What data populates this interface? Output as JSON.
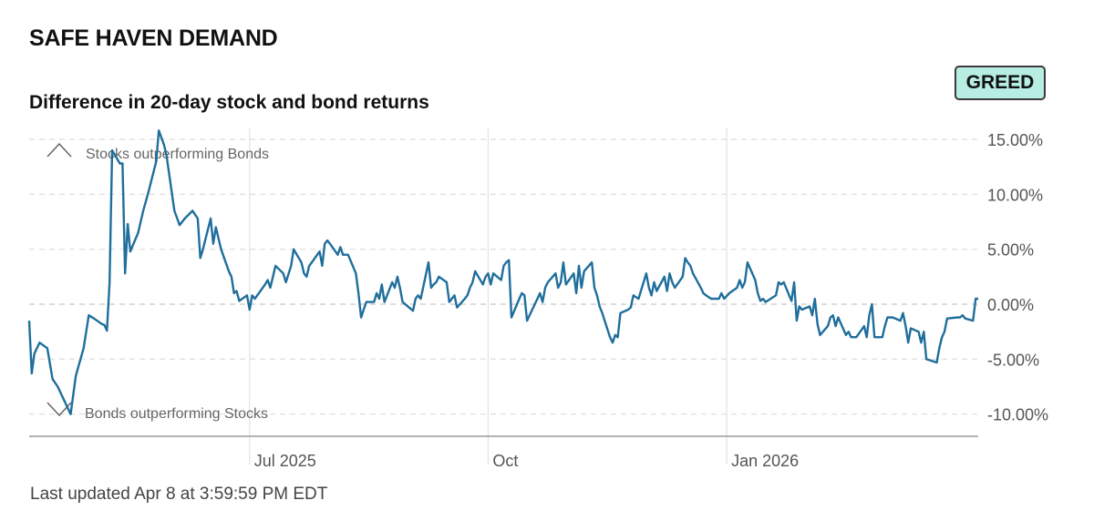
{
  "header": {
    "title": "SAFE HAVEN DEMAND",
    "badge_label": "GREED",
    "badge_color": "#b8ede4"
  },
  "footer": {
    "updated": "Last updated Apr 8 at 3:59:59 PM EDT"
  },
  "chart_data": {
    "type": "line",
    "title": "Difference in 20-day stock and bond returns",
    "xlabel": "",
    "ylabel": "",
    "ylim": [
      -12,
      16
    ],
    "y_ticks": [
      {
        "value": 15,
        "label": "15.00%"
      },
      {
        "value": 10,
        "label": "10.00%"
      },
      {
        "value": 5,
        "label": "5.00%"
      },
      {
        "value": 0,
        "label": "0.00%"
      },
      {
        "value": -5,
        "label": "-5.00%"
      },
      {
        "value": -10,
        "label": "-10.00%"
      }
    ],
    "x_ticks": [
      {
        "date": "2025-07-01",
        "label": "Jul 2025"
      },
      {
        "date": "2025-10-01",
        "label": "Oct"
      },
      {
        "date": "2026-01-01",
        "label": "Jan 2026"
      }
    ],
    "xlim": [
      "2025-04-07",
      "2026-04-08"
    ],
    "grid": true,
    "line_color": "#1f6e9c",
    "annotations": {
      "top": "Stocks outperforming Bonds",
      "bottom": "Bonds outperforming Stocks"
    },
    "series": [
      {
        "values": [
          [
            "2025-04-07",
            -1.5
          ],
          [
            "2025-04-08",
            -6.3
          ],
          [
            "2025-04-09",
            -4.5
          ],
          [
            "2025-04-11",
            -3.5
          ],
          [
            "2025-04-14",
            -4.0
          ],
          [
            "2025-04-16",
            -6.8
          ],
          [
            "2025-04-18",
            -7.5
          ],
          [
            "2025-04-21",
            -9.0
          ],
          [
            "2025-04-23",
            -10.0
          ],
          [
            "2025-04-25",
            -6.5
          ],
          [
            "2025-04-28",
            -4.0
          ],
          [
            "2025-04-30",
            -1.0
          ],
          [
            "2025-05-02",
            -1.3
          ],
          [
            "2025-05-05",
            -1.8
          ],
          [
            "2025-05-06",
            -1.9
          ],
          [
            "2025-05-07",
            -2.4
          ],
          [
            "2025-05-08",
            2.0
          ],
          [
            "2025-05-09",
            14.0
          ],
          [
            "2025-05-12",
            12.8
          ],
          [
            "2025-05-13",
            12.8
          ],
          [
            "2025-05-14",
            2.8
          ],
          [
            "2025-05-15",
            7.3
          ],
          [
            "2025-05-16",
            4.8
          ],
          [
            "2025-05-19",
            6.5
          ],
          [
            "2025-05-21",
            8.5
          ],
          [
            "2025-05-23",
            10.2
          ],
          [
            "2025-05-26",
            13.0
          ],
          [
            "2025-05-27",
            15.8
          ],
          [
            "2025-05-29",
            14.5
          ],
          [
            "2025-05-30",
            13.5
          ],
          [
            "2025-06-02",
            8.5
          ],
          [
            "2025-06-04",
            7.2
          ],
          [
            "2025-06-06",
            7.8
          ],
          [
            "2025-06-09",
            8.5
          ],
          [
            "2025-06-11",
            7.8
          ],
          [
            "2025-06-12",
            4.2
          ],
          [
            "2025-06-13",
            5.0
          ],
          [
            "2025-06-16",
            7.8
          ],
          [
            "2025-06-17",
            5.5
          ],
          [
            "2025-06-18",
            7.0
          ],
          [
            "2025-06-20",
            5.0
          ],
          [
            "2025-06-23",
            3.0
          ],
          [
            "2025-06-24",
            2.5
          ],
          [
            "2025-06-25",
            1.0
          ],
          [
            "2025-06-26",
            1.2
          ],
          [
            "2025-06-27",
            0.3
          ],
          [
            "2025-06-30",
            0.8
          ],
          [
            "2025-07-01",
            -0.5
          ],
          [
            "2025-07-02",
            0.8
          ],
          [
            "2025-07-03",
            0.5
          ],
          [
            "2025-07-07",
            1.8
          ],
          [
            "2025-07-08",
            2.2
          ],
          [
            "2025-07-09",
            1.5
          ],
          [
            "2025-07-10",
            2.5
          ],
          [
            "2025-07-11",
            3.5
          ],
          [
            "2025-07-14",
            2.8
          ],
          [
            "2025-07-15",
            2.0
          ],
          [
            "2025-07-17",
            3.5
          ],
          [
            "2025-07-18",
            5.0
          ],
          [
            "2025-07-21",
            3.8
          ],
          [
            "2025-07-22",
            2.8
          ],
          [
            "2025-07-23",
            2.5
          ],
          [
            "2025-07-24",
            3.5
          ],
          [
            "2025-07-25",
            3.8
          ],
          [
            "2025-07-28",
            4.8
          ],
          [
            "2025-07-29",
            3.5
          ],
          [
            "2025-07-30",
            5.5
          ],
          [
            "2025-07-31",
            5.8
          ],
          [
            "2025-08-01",
            5.5
          ],
          [
            "2025-08-04",
            4.5
          ],
          [
            "2025-08-05",
            5.2
          ],
          [
            "2025-08-06",
            4.5
          ],
          [
            "2025-08-08",
            4.5
          ],
          [
            "2025-08-11",
            2.8
          ],
          [
            "2025-08-12",
            1.0
          ],
          [
            "2025-08-13",
            -1.2
          ],
          [
            "2025-08-14",
            -0.5
          ],
          [
            "2025-08-15",
            0.2
          ],
          [
            "2025-08-18",
            0.2
          ],
          [
            "2025-08-19",
            1.0
          ],
          [
            "2025-08-20",
            0.5
          ],
          [
            "2025-08-21",
            1.8
          ],
          [
            "2025-08-22",
            0.2
          ],
          [
            "2025-08-25",
            2.0
          ],
          [
            "2025-08-26",
            1.5
          ],
          [
            "2025-08-27",
            2.5
          ],
          [
            "2025-08-28",
            1.5
          ],
          [
            "2025-08-29",
            0.2
          ],
          [
            "2025-09-02",
            -0.6
          ],
          [
            "2025-09-03",
            0.5
          ],
          [
            "2025-09-04",
            0.8
          ],
          [
            "2025-09-05",
            0.5
          ],
          [
            "2025-09-08",
            3.8
          ],
          [
            "2025-09-09",
            1.5
          ],
          [
            "2025-09-10",
            1.8
          ],
          [
            "2025-09-11",
            2.0
          ],
          [
            "2025-09-12",
            2.5
          ],
          [
            "2025-09-15",
            2.0
          ],
          [
            "2025-09-16",
            0.2
          ],
          [
            "2025-09-17",
            0.5
          ],
          [
            "2025-09-18",
            0.8
          ],
          [
            "2025-09-19",
            -0.3
          ],
          [
            "2025-09-22",
            0.5
          ],
          [
            "2025-09-23",
            0.8
          ],
          [
            "2025-09-24",
            1.5
          ],
          [
            "2025-09-25",
            2.0
          ],
          [
            "2025-09-26",
            3.0
          ],
          [
            "2025-09-29",
            1.8
          ],
          [
            "2025-09-30",
            2.5
          ],
          [
            "2025-10-01",
            2.8
          ],
          [
            "2025-10-02",
            1.8
          ],
          [
            "2025-10-03",
            2.8
          ],
          [
            "2025-10-06",
            2.2
          ],
          [
            "2025-10-07",
            3.5
          ],
          [
            "2025-10-08",
            3.8
          ],
          [
            "2025-10-09",
            4.0
          ],
          [
            "2025-10-10",
            -1.2
          ],
          [
            "2025-10-13",
            0.5
          ],
          [
            "2025-10-14",
            1.0
          ],
          [
            "2025-10-15",
            0.8
          ],
          [
            "2025-10-16",
            -1.5
          ],
          [
            "2025-10-17",
            -1.0
          ],
          [
            "2025-10-20",
            0.5
          ],
          [
            "2025-10-21",
            1.0
          ],
          [
            "2025-10-22",
            0.2
          ],
          [
            "2025-10-23",
            1.5
          ],
          [
            "2025-10-24",
            2.0
          ],
          [
            "2025-10-27",
            2.8
          ],
          [
            "2025-10-28",
            1.5
          ],
          [
            "2025-10-29",
            2.0
          ],
          [
            "2025-10-30",
            3.8
          ],
          [
            "2025-10-31",
            1.8
          ],
          [
            "2025-11-03",
            2.8
          ],
          [
            "2025-11-04",
            1.0
          ],
          [
            "2025-11-05",
            3.5
          ],
          [
            "2025-11-06",
            1.5
          ],
          [
            "2025-11-07",
            3.0
          ],
          [
            "2025-11-10",
            3.8
          ],
          [
            "2025-11-11",
            1.5
          ],
          [
            "2025-11-12",
            0.8
          ],
          [
            "2025-11-13",
            -0.2
          ],
          [
            "2025-11-14",
            -0.8
          ],
          [
            "2025-11-17",
            -3.0
          ],
          [
            "2025-11-18",
            -3.5
          ],
          [
            "2025-11-19",
            -2.8
          ],
          [
            "2025-11-20",
            -3.0
          ],
          [
            "2025-11-21",
            -0.8
          ],
          [
            "2025-11-24",
            -0.5
          ],
          [
            "2025-11-25",
            -0.3
          ],
          [
            "2025-11-26",
            0.8
          ],
          [
            "2025-11-28",
            0.5
          ],
          [
            "2025-12-01",
            2.8
          ],
          [
            "2025-12-02",
            1.5
          ],
          [
            "2025-12-03",
            0.8
          ],
          [
            "2025-12-04",
            2.0
          ],
          [
            "2025-12-05",
            1.2
          ],
          [
            "2025-12-08",
            2.5
          ],
          [
            "2025-12-09",
            1.2
          ],
          [
            "2025-12-10",
            2.8
          ],
          [
            "2025-12-11",
            2.0
          ],
          [
            "2025-12-12",
            1.5
          ],
          [
            "2025-12-15",
            2.5
          ],
          [
            "2025-12-16",
            4.2
          ],
          [
            "2025-12-17",
            3.8
          ],
          [
            "2025-12-18",
            3.5
          ],
          [
            "2025-12-19",
            2.8
          ],
          [
            "2025-12-22",
            1.5
          ],
          [
            "2025-12-23",
            1.0
          ],
          [
            "2025-12-24",
            0.8
          ],
          [
            "2025-12-26",
            0.5
          ],
          [
            "2025-12-29",
            0.5
          ],
          [
            "2025-12-30",
            1.0
          ],
          [
            "2025-12-31",
            0.5
          ],
          [
            "2026-01-02",
            1.0
          ],
          [
            "2026-01-05",
            1.5
          ],
          [
            "2026-01-06",
            2.2
          ],
          [
            "2026-01-07",
            1.5
          ],
          [
            "2026-01-08",
            2.0
          ],
          [
            "2026-01-09",
            3.8
          ],
          [
            "2026-01-12",
            2.2
          ],
          [
            "2026-01-13",
            1.0
          ],
          [
            "2026-01-14",
            0.3
          ],
          [
            "2026-01-15",
            0.5
          ],
          [
            "2026-01-16",
            0.2
          ],
          [
            "2026-01-20",
            0.8
          ],
          [
            "2026-01-21",
            2.0
          ],
          [
            "2026-01-22",
            1.8
          ],
          [
            "2026-01-23",
            2.0
          ],
          [
            "2026-01-26",
            0.3
          ],
          [
            "2026-01-27",
            2.0
          ],
          [
            "2026-01-28",
            -1.5
          ],
          [
            "2026-01-29",
            -0.2
          ],
          [
            "2026-01-30",
            -0.5
          ],
          [
            "2026-02-02",
            -0.2
          ],
          [
            "2026-02-03",
            -1.0
          ],
          [
            "2026-02-04",
            0.5
          ],
          [
            "2026-02-05",
            -1.8
          ],
          [
            "2026-02-06",
            -2.8
          ],
          [
            "2026-02-09",
            -2.0
          ],
          [
            "2026-02-10",
            -1.2
          ],
          [
            "2026-02-11",
            -1.0
          ],
          [
            "2026-02-12",
            -2.0
          ],
          [
            "2026-02-13",
            -1.2
          ],
          [
            "2026-02-16",
            -2.8
          ],
          [
            "2026-02-17",
            -2.5
          ],
          [
            "2026-02-18",
            -3.0
          ],
          [
            "2026-02-20",
            -3.0
          ],
          [
            "2026-02-23",
            -2.0
          ],
          [
            "2026-02-24",
            -3.0
          ],
          [
            "2026-02-25",
            -1.0
          ],
          [
            "2026-02-26",
            0.0
          ],
          [
            "2026-02-27",
            -3.0
          ],
          [
            "2026-03-02",
            -3.0
          ],
          [
            "2026-03-03",
            -2.0
          ],
          [
            "2026-03-04",
            -1.2
          ],
          [
            "2026-03-06",
            -1.2
          ],
          [
            "2026-03-09",
            -1.5
          ],
          [
            "2026-03-10",
            -0.8
          ],
          [
            "2026-03-11",
            -2.0
          ],
          [
            "2026-03-12",
            -3.5
          ],
          [
            "2026-03-13",
            -2.2
          ],
          [
            "2026-03-16",
            -2.5
          ],
          [
            "2026-03-17",
            -3.5
          ],
          [
            "2026-03-18",
            -2.5
          ],
          [
            "2026-03-19",
            -5.0
          ],
          [
            "2026-03-23",
            -5.3
          ],
          [
            "2026-03-24",
            -4.0
          ],
          [
            "2026-03-25",
            -3.0
          ],
          [
            "2026-03-26",
            -2.5
          ],
          [
            "2026-03-27",
            -1.3
          ],
          [
            "2026-03-31",
            -1.2
          ],
          [
            "2026-04-01",
            -1.2
          ],
          [
            "2026-04-02",
            -1.0
          ],
          [
            "2026-04-03",
            -1.3
          ],
          [
            "2026-04-06",
            -1.5
          ],
          [
            "2026-04-07",
            0.5
          ],
          [
            "2026-04-08",
            0.5
          ]
        ]
      }
    ]
  }
}
